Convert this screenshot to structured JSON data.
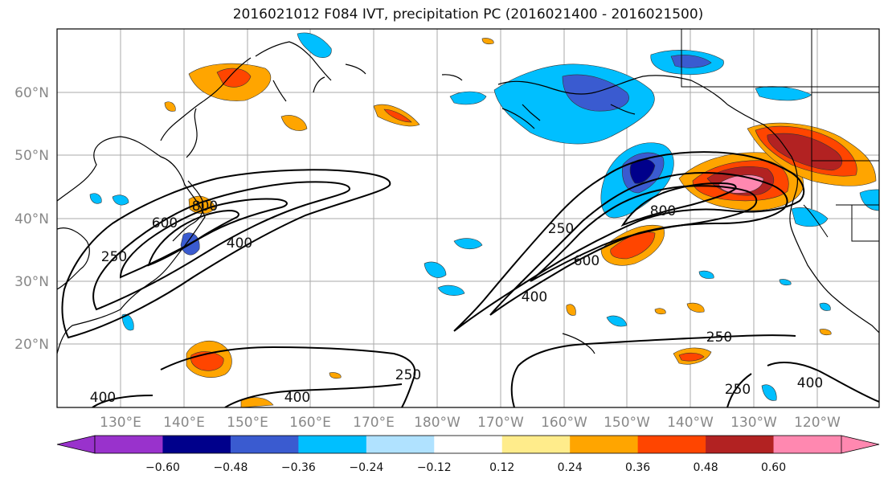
{
  "title": "2016021012 F084 IVT, precipitation PC (2016021400 - 2016021500)",
  "lat_labels": [
    "60°N",
    "50°N",
    "40°N",
    "30°N",
    "20°N"
  ],
  "lon_labels": [
    "130°E",
    "140°E",
    "150°E",
    "160°E",
    "170°E",
    "180°W",
    "170°W",
    "160°W",
    "150°W",
    "140°W",
    "130°W",
    "120°W"
  ],
  "colorbar": {
    "colors": [
      "#9932cc",
      "#00008b",
      "#3a5bd0",
      "#00bfff",
      "#b0e2ff",
      "#ffffff",
      "#ffec8b",
      "#ffa500",
      "#ff4500",
      "#b22222",
      "#ff88b0"
    ],
    "ticks": [
      "−0.60",
      "−0.48",
      "−0.36",
      "−0.24",
      "−0.12",
      "0.12",
      "0.24",
      "0.36",
      "0.48",
      "0.60"
    ]
  },
  "contour_labels": {
    "c1": "400",
    "c2": "600",
    "c3": "800",
    "c4": "250",
    "c5": "250",
    "c6": "400",
    "c7": "600",
    "c8": "800",
    "c9": "250",
    "c10": "400",
    "c11": "250",
    "c12": "400",
    "c13": "250"
  }
}
